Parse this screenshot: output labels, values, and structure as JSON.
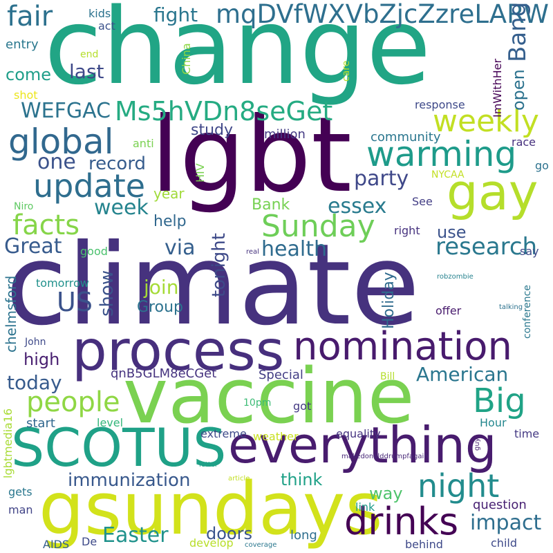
{
  "words": [
    {
      "text": "climate",
      "color": "#46327e"
    },
    {
      "text": "change",
      "color": "#21a585"
    },
    {
      "text": "lgbt",
      "color": "#440154"
    },
    {
      "text": "vaccine",
      "color": "#7ad151"
    },
    {
      "text": "gsundays",
      "color": "#d2e21b"
    },
    {
      "text": "process",
      "color": "#472f7d"
    },
    {
      "text": "everything",
      "color": "#481c6e"
    },
    {
      "text": "SCOTUS",
      "color": "#1fa187"
    },
    {
      "text": "nomination",
      "color": "#481b6d"
    },
    {
      "text": "gay",
      "color": "#b5de2b"
    },
    {
      "text": "drinks",
      "color": "#440154"
    },
    {
      "text": "warming",
      "color": "#1e9b8a"
    },
    {
      "text": "global",
      "color": "#31688e"
    },
    {
      "text": "update",
      "color": "#2e6e8e"
    },
    {
      "text": "mqDVfWXVbZjcZzreLARW",
      "color": "#2e6f8e"
    },
    {
      "text": "night",
      "color": "#228c8d"
    },
    {
      "text": "Sunday",
      "color": "#6ece58"
    },
    {
      "text": "people",
      "color": "#8fd744"
    },
    {
      "text": "Big",
      "color": "#20a386"
    },
    {
      "text": "weekly",
      "color": "#c2df23"
    },
    {
      "text": "facts",
      "color": "#86d549"
    },
    {
      "text": "Ms5hVDn8seGet",
      "color": "#25ab82"
    },
    {
      "text": "fair",
      "color": "#2d718e"
    },
    {
      "text": "US",
      "color": "#3b528b"
    },
    {
      "text": "research",
      "color": "#2a788e"
    },
    {
      "text": "immunization",
      "color": "#38588c"
    },
    {
      "text": "Easter",
      "color": "#20928c"
    },
    {
      "text": "American",
      "color": "#2a768e"
    },
    {
      "text": "impact",
      "color": "#2e6e8e"
    },
    {
      "text": "essex",
      "color": "#297b8e"
    },
    {
      "text": "Great",
      "color": "#375b8d"
    },
    {
      "text": "party",
      "color": "#3f4889"
    },
    {
      "text": "WEFGAC",
      "color": "#2c738e"
    },
    {
      "text": "week",
      "color": "#25848e"
    },
    {
      "text": "health",
      "color": "#2f6b8e"
    },
    {
      "text": "via",
      "color": "#355f8d"
    },
    {
      "text": "record",
      "color": "#365c8d"
    },
    {
      "text": "one",
      "color": "#3b528b"
    },
    {
      "text": "last",
      "color": "#3e4989"
    },
    {
      "text": "fight",
      "color": "#2a768e"
    },
    {
      "text": "today",
      "color": "#375b8d"
    },
    {
      "text": "join",
      "color": "#a5db36"
    },
    {
      "text": "way",
      "color": "#4ec36b"
    },
    {
      "text": "think",
      "color": "#1fa187"
    },
    {
      "text": "doors",
      "color": "#3a548c"
    },
    {
      "text": "high",
      "color": "#481f70"
    },
    {
      "text": "help",
      "color": "#31688e"
    },
    {
      "text": "Group",
      "color": "#2c728e"
    },
    {
      "text": "study",
      "color": "#3f4788"
    },
    {
      "text": "come",
      "color": "#1f9e89"
    },
    {
      "text": "use",
      "color": "#3b528b"
    },
    {
      "text": "Bank",
      "color": "#77d153"
    },
    {
      "text": "Special",
      "color": "#433e85"
    },
    {
      "text": "qnB5GLM8eCGet",
      "color": "#46337f"
    },
    {
      "text": "year",
      "color": "#a0da39"
    },
    {
      "text": "million",
      "color": "#443a83"
    },
    {
      "text": "community",
      "color": "#2a768e"
    },
    {
      "text": "question",
      "color": "#482173"
    },
    {
      "text": "entry",
      "color": "#2a788e"
    },
    {
      "text": "response",
      "color": "#3e4989"
    },
    {
      "text": "race",
      "color": "#46307e"
    },
    {
      "text": "extreme",
      "color": "#3e4a89"
    },
    {
      "text": "weather",
      "color": "#c8e020"
    },
    {
      "text": "equality",
      "color": "#463480"
    },
    {
      "text": "level",
      "color": "#32b67a"
    },
    {
      "text": "start",
      "color": "#31678e"
    },
    {
      "text": "long",
      "color": "#2e6e8e"
    },
    {
      "text": "develop",
      "color": "#b8de29"
    },
    {
      "text": "child",
      "color": "#3e4989"
    },
    {
      "text": "behind",
      "color": "#3e4989"
    },
    {
      "text": "link",
      "color": "#1e9b8a"
    },
    {
      "text": "time",
      "color": "#443983"
    },
    {
      "text": "Hour",
      "color": "#24878e"
    },
    {
      "text": "gets",
      "color": "#2a778e"
    },
    {
      "text": "man",
      "color": "#414487"
    },
    {
      "text": "AIDS",
      "color": "#355f8d"
    },
    {
      "text": "De",
      "color": "#3e4a89"
    },
    {
      "text": "got",
      "color": "#443983"
    },
    {
      "text": "10pm",
      "color": "#3bbb75"
    },
    {
      "text": "good",
      "color": "#4ac16d"
    },
    {
      "text": "tomorrow",
      "color": "#21918c"
    },
    {
      "text": "John",
      "color": "#3e4989"
    },
    {
      "text": "Bill",
      "color": "#b5de2b"
    },
    {
      "text": "offer",
      "color": "#481b6d"
    },
    {
      "text": "say",
      "color": "#3e4989"
    },
    {
      "text": "right",
      "color": "#46327e"
    },
    {
      "text": "go",
      "color": "#2c728e"
    },
    {
      "text": "See",
      "color": "#433e85"
    },
    {
      "text": "NYCAA",
      "color": "#c2df23"
    },
    {
      "text": "anti",
      "color": "#7ad151"
    },
    {
      "text": "act",
      "color": "#3b528b"
    },
    {
      "text": "kids",
      "color": "#2c728e"
    },
    {
      "text": "end",
      "color": "#b5de2b"
    },
    {
      "text": "shot",
      "color": "#ece51b"
    },
    {
      "text": "Niro",
      "color": "#5ec962"
    },
    {
      "text": "care",
      "color": "#b5de2b"
    },
    {
      "text": "makedonalddrumpfagain",
      "color": "#482878"
    },
    {
      "text": "robzombie",
      "color": "#26828e"
    },
    {
      "text": "talking",
      "color": "#2c728e"
    },
    {
      "text": "real",
      "color": "#46327e"
    },
    {
      "text": "letter",
      "color": "#1fa088"
    },
    {
      "text": "article",
      "color": "#c2df23"
    },
    {
      "text": "coverage",
      "color": "#2a778e"
    },
    {
      "text": "guy",
      "color": "#481f70"
    },
    {
      "text": "Bang",
      "color": "#355f8d"
    },
    {
      "text": "open",
      "color": "#2c728e"
    },
    {
      "text": "tonight",
      "color": "#3e4a89"
    },
    {
      "text": "show",
      "color": "#3b528b"
    },
    {
      "text": "Holiday",
      "color": "#2f6b8e"
    },
    {
      "text": "chelmsford",
      "color": "#2c738e"
    },
    {
      "text": "lgbtmedia16",
      "color": "#a8db34"
    },
    {
      "text": "China",
      "color": "#8fd744"
    },
    {
      "text": "ImWithHer",
      "color": "#440154"
    },
    {
      "text": "HIV",
      "color": "#7ad151"
    },
    {
      "text": "conference",
      "color": "#2a788e"
    }
  ]
}
